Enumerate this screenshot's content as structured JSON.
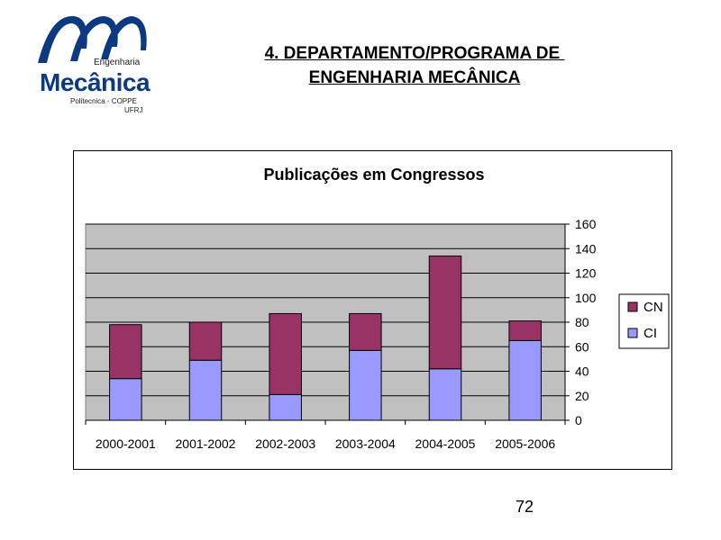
{
  "header": {
    "title_line1": "4. DEPARTAMENTO/PROGRAMA DE ",
    "title_line2": "ENGENHARIA MECÂNICA"
  },
  "logo": {
    "line1": "Engenharia",
    "line2": "Mecânica",
    "line3": "Politecnica - COPPE",
    "line4": "UFRJ",
    "colors": {
      "arcs": "#0b3a82"
    }
  },
  "chart_data": {
    "type": "bar",
    "stacked": true,
    "title": "Publicações em Congressos",
    "categories": [
      "2000-2001",
      "2001-2002",
      "2002-2003",
      "2003-2004",
      "2004-2005",
      "2005-2006"
    ],
    "series": [
      {
        "name": "CI",
        "values": [
          34,
          49,
          21,
          57,
          42,
          65
        ],
        "color": "#9999ff"
      },
      {
        "name": "CN",
        "values": [
          44,
          31,
          66,
          30,
          92,
          16
        ],
        "color": "#993366"
      }
    ],
    "xlabel": "",
    "ylabel": "",
    "ylim": [
      0,
      160
    ],
    "yticks": [
      "0",
      "20",
      "40",
      "60",
      "80",
      "100",
      "120",
      "140",
      "160"
    ],
    "grid": true,
    "plot_background": "#c0c0c0",
    "legend_position": "right"
  },
  "page_number": "72"
}
